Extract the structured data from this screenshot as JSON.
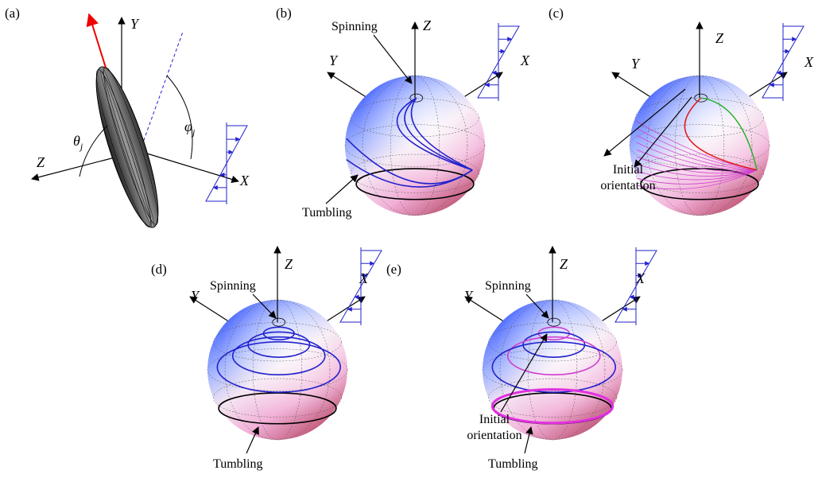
{
  "panels": [
    {
      "label": "(a)",
      "axes": {
        "x": "X",
        "y": "Y",
        "z": "Z"
      },
      "angles": [
        {
          "symbol": "θ",
          "sub": "j"
        },
        {
          "symbol": "φ",
          "sub": "j"
        }
      ]
    },
    {
      "label": "(b)",
      "axes": {
        "x": "X",
        "y": "Y",
        "z": "Z"
      },
      "spinning": "Spinning",
      "tumbling": "Tumbling"
    },
    {
      "label": "(c)",
      "axes": {
        "x": "X",
        "y": "Y",
        "z": "Z"
      },
      "initial": [
        "Initial",
        "orientation"
      ]
    },
    {
      "label": "(d)",
      "axes": {
        "x": "X",
        "y": "Y",
        "z": "Z"
      },
      "spinning": "Spinning",
      "tumbling": "Tumbling"
    },
    {
      "label": "(e)",
      "axes": {
        "x": "X",
        "y": "Y",
        "z": "Z"
      },
      "spinning": "Spinning",
      "initial": [
        "Initial",
        "orientation"
      ],
      "tumbling": "Tumbling"
    }
  ]
}
